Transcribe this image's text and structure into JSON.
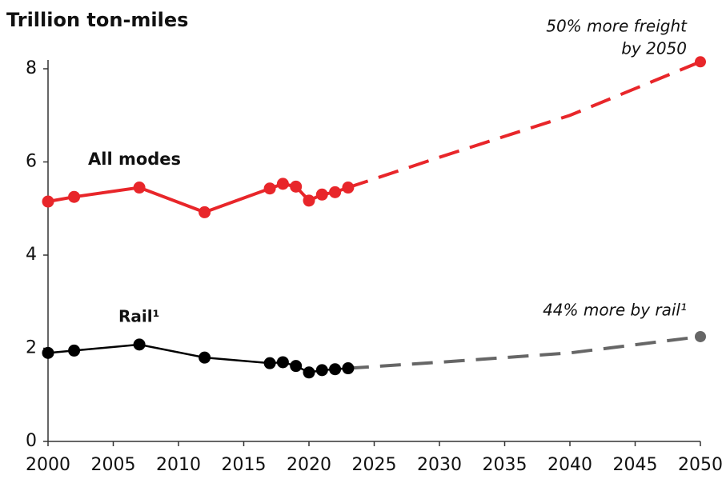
{
  "chart_data": {
    "type": "line",
    "title": "Trillion ton-miles",
    "xlim": [
      2000,
      2050
    ],
    "xticks": [
      2000,
      2005,
      2010,
      2015,
      2020,
      2025,
      2030,
      2035,
      2040,
      2045,
      2050
    ],
    "ylim": [
      0,
      8
    ],
    "yticks": [
      0,
      2,
      4,
      6,
      8
    ],
    "series": [
      {
        "name": "All modes",
        "color": "#e8262a",
        "x": [
          2000,
          2002,
          2007,
          2012,
          2017,
          2018,
          2019,
          2020,
          2021,
          2022,
          2023
        ],
        "values": [
          5.15,
          5.25,
          5.45,
          4.92,
          5.43,
          5.53,
          5.47,
          5.17,
          5.3,
          5.35,
          5.45
        ],
        "projection": {
          "color": "#e8262a",
          "x": [
            2023,
            2030,
            2040,
            2050
          ],
          "values": [
            5.45,
            6.1,
            7.0,
            8.15
          ]
        }
      },
      {
        "name": "Rail¹",
        "color": "#000000",
        "x": [
          2000,
          2002,
          2007,
          2012,
          2017,
          2018,
          2019,
          2020,
          2021,
          2022,
          2023
        ],
        "values": [
          1.9,
          1.95,
          2.08,
          1.8,
          1.68,
          1.7,
          1.62,
          1.48,
          1.53,
          1.55,
          1.57
        ],
        "projection": {
          "color": "#666666",
          "x": [
            2023,
            2030,
            2040,
            2050
          ],
          "values": [
            1.57,
            1.7,
            1.9,
            2.25
          ]
        }
      }
    ],
    "annotations": [
      {
        "lines": [
          "50% more freight",
          "by 2050"
        ]
      },
      {
        "lines": [
          "44% more by rail¹"
        ]
      }
    ]
  }
}
